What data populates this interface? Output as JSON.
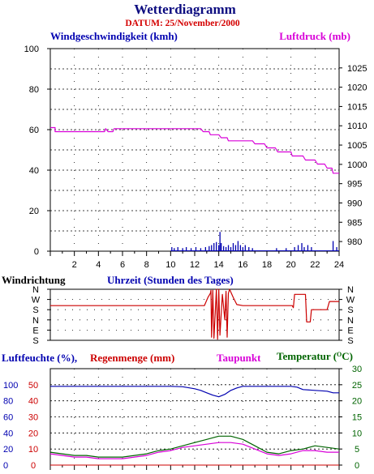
{
  "header": {
    "title": "Wetterdiagramm",
    "subtitle": "DATUM: 25/November/2000"
  },
  "colors": {
    "title": "#0c0c80",
    "subtitle": "#d40000",
    "wind": "#0000b0",
    "pressure": "#d800d8",
    "direction": "#cc0000",
    "humidity": "#0000b0",
    "rain": "#cc0000",
    "dewpoint": "#d800d8",
    "temperature": "#006400",
    "grid": "#000000"
  },
  "chart_data": [
    {
      "type": "line",
      "id": "wind-pressure",
      "left_label": "Windgeschwindigkeit (kmh)",
      "right_label": "Luftdruck (mb)",
      "xlabel": "Uhrzeit (Stunden des Tages)",
      "xlim": [
        0,
        24
      ],
      "x_ticks": [
        2,
        4,
        6,
        8,
        10,
        12,
        14,
        16,
        18,
        20,
        22,
        24
      ],
      "ylim_left": [
        0,
        100
      ],
      "y_ticks_left": [
        0,
        20,
        40,
        60,
        80,
        100
      ],
      "ylim_right": [
        977.5,
        1030
      ],
      "y_ticks_right": [
        980,
        985,
        990,
        995,
        1000,
        1005,
        1010,
        1015,
        1020,
        1025
      ],
      "pressure": [
        [
          0,
          61
        ],
        [
          0.4,
          61
        ],
        [
          0.4,
          59
        ],
        [
          4.5,
          59
        ],
        [
          4.6,
          60.5
        ],
        [
          4.8,
          59
        ],
        [
          5.2,
          59
        ],
        [
          5.3,
          60.5
        ],
        [
          12.5,
          60.5
        ],
        [
          12.7,
          59
        ],
        [
          13.2,
          59
        ],
        [
          13.3,
          57.5
        ],
        [
          14,
          57.5
        ],
        [
          14.2,
          56
        ],
        [
          14.7,
          56
        ],
        [
          14.8,
          54.5
        ],
        [
          16.8,
          54.5
        ],
        [
          17,
          53
        ],
        [
          17.8,
          53
        ],
        [
          18,
          51
        ],
        [
          18.7,
          51
        ],
        [
          18.9,
          49
        ],
        [
          20,
          49
        ],
        [
          20.1,
          47
        ],
        [
          21,
          47
        ],
        [
          21.2,
          45
        ],
        [
          22,
          45
        ],
        [
          22.2,
          43
        ],
        [
          22.8,
          43
        ],
        [
          23,
          41
        ],
        [
          23.4,
          41
        ],
        [
          23.5,
          38.5
        ],
        [
          24,
          38.5
        ]
      ],
      "wind_gusts": [
        [
          10.1,
          2
        ],
        [
          10.3,
          1.5
        ],
        [
          10.6,
          2
        ],
        [
          11,
          1.5
        ],
        [
          11.3,
          2
        ],
        [
          11.7,
          1.5
        ],
        [
          12.1,
          2
        ],
        [
          12.5,
          1.5
        ],
        [
          12.9,
          2
        ],
        [
          13.2,
          2.5
        ],
        [
          13.4,
          3
        ],
        [
          13.6,
          4
        ],
        [
          13.8,
          4.5
        ],
        [
          14,
          3
        ],
        [
          14.1,
          9.5
        ],
        [
          14.2,
          4
        ],
        [
          14.4,
          2.5
        ],
        [
          14.6,
          2
        ],
        [
          14.8,
          3
        ],
        [
          15,
          2
        ],
        [
          15.2,
          4
        ],
        [
          15.4,
          3
        ],
        [
          15.6,
          5
        ],
        [
          15.8,
          3
        ],
        [
          16,
          2
        ],
        [
          16.2,
          3
        ],
        [
          16.5,
          2
        ],
        [
          16.8,
          1.5
        ],
        [
          18.8,
          1.5
        ],
        [
          19.6,
          1.5
        ],
        [
          20.3,
          2
        ],
        [
          20.6,
          3
        ],
        [
          20.9,
          4
        ],
        [
          21.1,
          2
        ],
        [
          21.4,
          3
        ],
        [
          21.7,
          2
        ],
        [
          23.5,
          5
        ],
        [
          23.8,
          2
        ]
      ]
    },
    {
      "type": "line",
      "id": "wind-direction",
      "ylabel": "Windrichtung",
      "categories": [
        "S",
        "E",
        "N",
        "S",
        "W",
        "N"
      ],
      "direction_index": [
        [
          0,
          3.4
        ],
        [
          12.8,
          3.4
        ],
        [
          13.1,
          4.2
        ],
        [
          13.3,
          4.6
        ],
        [
          13.35,
          4.9
        ],
        [
          13.4,
          0.3
        ],
        [
          13.5,
          4.9
        ],
        [
          13.6,
          0.2
        ],
        [
          13.7,
          2.5
        ],
        [
          13.8,
          5
        ],
        [
          13.9,
          0.1
        ],
        [
          14,
          5
        ],
        [
          14.1,
          0.5
        ],
        [
          14.3,
          4.5
        ],
        [
          14.5,
          2
        ],
        [
          14.6,
          4.8
        ],
        [
          14.7,
          0.3
        ],
        [
          14.8,
          4.6
        ],
        [
          14.9,
          5
        ],
        [
          15.2,
          4.2
        ],
        [
          15.5,
          3.5
        ],
        [
          16,
          3.4
        ],
        [
          20.1,
          3.4
        ],
        [
          20.2,
          3.2
        ],
        [
          20.3,
          4.5
        ],
        [
          21.2,
          4.5
        ],
        [
          21.3,
          1.8
        ],
        [
          21.6,
          1.8
        ],
        [
          21.7,
          3
        ],
        [
          23,
          3
        ],
        [
          23.2,
          3.8
        ],
        [
          24,
          3.8
        ]
      ]
    },
    {
      "type": "line",
      "id": "humidity-temperature",
      "series_labels": [
        "Luftfeuchte (%),",
        "Regenmenge (mm)",
        "Taupunkt",
        "Temperatur (",
        ")"
      ],
      "degree_glyph": "O",
      "temperature_unit": "C",
      "ylim_humidity": [
        0,
        120
      ],
      "y_ticks_humidity": [
        0,
        20,
        40,
        60,
        80,
        100
      ],
      "ylim_rain": [
        0,
        60
      ],
      "y_ticks_rain": [
        0,
        10,
        20,
        30,
        40,
        50
      ],
      "ylim_temp": [
        0,
        30
      ],
      "y_ticks_temp": [
        0,
        5,
        10,
        15,
        20,
        25,
        30
      ],
      "humidity": [
        [
          0,
          98
        ],
        [
          2,
          98
        ],
        [
          4,
          98
        ],
        [
          6,
          98
        ],
        [
          8,
          98
        ],
        [
          10,
          98
        ],
        [
          11,
          97.5
        ],
        [
          12,
          95
        ],
        [
          12.5,
          93
        ],
        [
          13,
          90
        ],
        [
          13.5,
          87
        ],
        [
          14,
          85
        ],
        [
          14.5,
          88
        ],
        [
          15,
          93
        ],
        [
          15.5,
          96
        ],
        [
          16,
          98
        ],
        [
          18,
          98
        ],
        [
          20,
          98
        ],
        [
          20.5,
          97
        ],
        [
          21,
          94
        ],
        [
          22,
          93
        ],
        [
          23,
          92
        ],
        [
          23.5,
          90
        ],
        [
          24,
          90
        ]
      ],
      "temperature": [
        [
          0,
          4
        ],
        [
          1,
          3.5
        ],
        [
          2,
          3
        ],
        [
          3,
          3
        ],
        [
          4,
          2.5
        ],
        [
          5,
          2.5
        ],
        [
          6,
          2.5
        ],
        [
          7,
          3
        ],
        [
          8,
          3.5
        ],
        [
          9,
          4.5
        ],
        [
          10,
          5
        ],
        [
          11,
          6
        ],
        [
          12,
          7
        ],
        [
          13,
          8
        ],
        [
          14,
          9
        ],
        [
          15,
          9
        ],
        [
          16,
          8
        ],
        [
          17,
          6
        ],
        [
          18,
          4
        ],
        [
          19,
          3.5
        ],
        [
          20,
          4.5
        ],
        [
          21,
          5
        ],
        [
          22,
          6
        ],
        [
          23,
          5.5
        ],
        [
          24,
          5
        ]
      ],
      "dewpoint": [
        [
          0,
          3.5
        ],
        [
          1,
          3
        ],
        [
          2,
          2.5
        ],
        [
          3,
          2.5
        ],
        [
          4,
          2
        ],
        [
          5,
          2
        ],
        [
          6,
          2
        ],
        [
          7,
          2.5
        ],
        [
          8,
          3
        ],
        [
          9,
          4
        ],
        [
          10,
          4.5
        ],
        [
          11,
          5.5
        ],
        [
          12,
          6
        ],
        [
          13,
          6.5
        ],
        [
          14,
          7
        ],
        [
          15,
          7
        ],
        [
          16,
          6.5
        ],
        [
          17,
          5
        ],
        [
          18,
          3.5
        ],
        [
          19,
          3
        ],
        [
          20,
          3.5
        ],
        [
          21,
          4.5
        ],
        [
          22,
          4.5
        ],
        [
          23,
          4
        ],
        [
          24,
          4
        ]
      ],
      "rain": [
        [
          0,
          0
        ],
        [
          24,
          0
        ]
      ]
    }
  ]
}
